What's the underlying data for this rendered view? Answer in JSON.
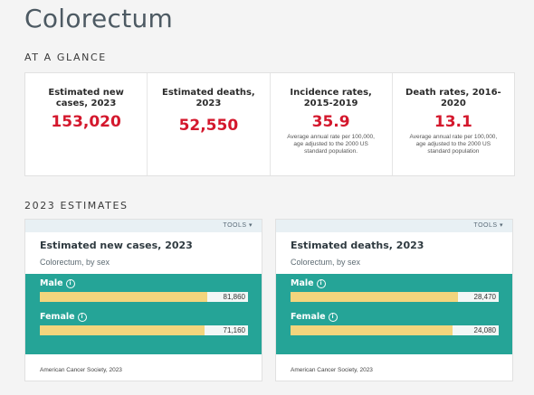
{
  "page_title": "Colorectum",
  "glance": {
    "heading": "AT A GLANCE",
    "stats": [
      {
        "label": "Estimated new cases, 2023",
        "value": "153,020",
        "note": ""
      },
      {
        "label": "Estimated deaths, 2023",
        "value": "52,550",
        "note": ""
      },
      {
        "label": "Incidence rates, 2015-2019",
        "value": "35.9",
        "note": "Average annual rate per 100,000, age adjusted to the 2000 US standard population."
      },
      {
        "label": "Death rates, 2016-2020",
        "value": "13.1",
        "note": "Average annual rate per 100,000, age adjusted to the 2000 US standard population"
      }
    ]
  },
  "estimates": {
    "heading": "2023 ESTIMATES",
    "cards": [
      {
        "tools_label": "TOOLS",
        "title": "Estimated new cases, 2023",
        "subtitle": "Colorectum, by sex",
        "source": "American Cancer Society, 2023",
        "bars": [
          {
            "label": "Male",
            "display": "81,860",
            "value": 81860
          },
          {
            "label": "Female",
            "display": "71,160",
            "value": 71160
          }
        ],
        "max": 90000
      },
      {
        "tools_label": "TOOLS",
        "title": "Estimated deaths, 2023",
        "subtitle": "Colorectum, by sex",
        "source": "American Cancer Society, 2023",
        "bars": [
          {
            "label": "Male",
            "display": "28,470",
            "value": 28470
          },
          {
            "label": "Female",
            "display": "24,080",
            "value": 24080
          }
        ],
        "max": 31000
      }
    ]
  },
  "colors": {
    "accent_red": "#d4182d",
    "chart_bg": "#25a497",
    "bar_fill": "#f3d57d"
  }
}
